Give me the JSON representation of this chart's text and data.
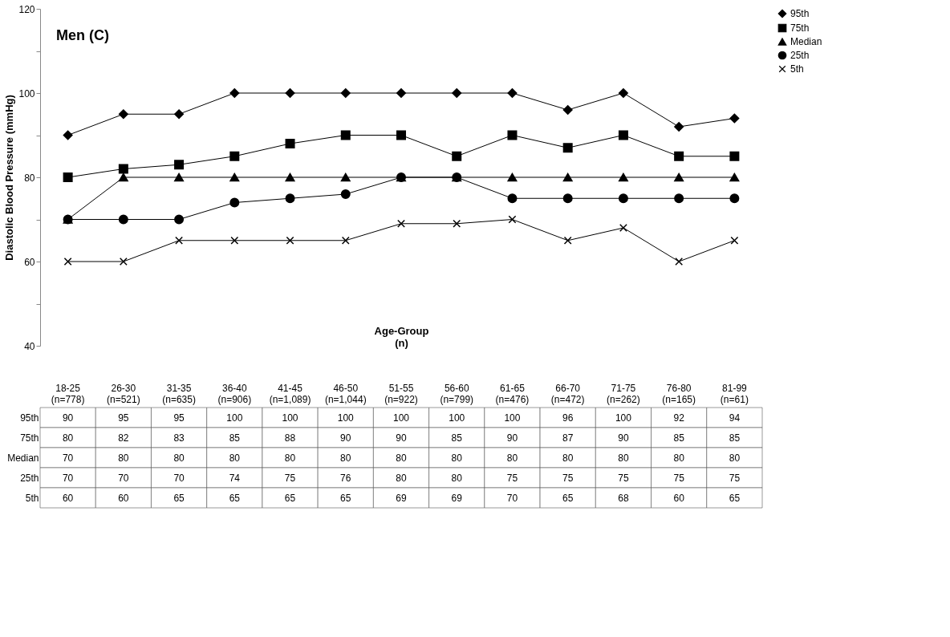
{
  "chart_data": {
    "type": "line",
    "title": "Men (C)",
    "xlabel": "Age-Group\n(n)",
    "ylabel": "Diastolic Blood Pressure (mmHg)",
    "categories": [
      "18-25 (n=778)",
      "26-30 (n=521)",
      "31-35 (n=635)",
      "36-40 (n=906)",
      "41-45 (n=1,089)",
      "46-50 (n=1,044)",
      "51-55 (n=922)",
      "56-60 (n=799)",
      "61-65 (n=476)",
      "66-70 (n=472)",
      "71-75 (n=262)",
      "76-80 (n=165)",
      "81-99 (n=61)"
    ],
    "series": [
      {
        "name": "95th",
        "color": "#000000",
        "marker": "diamond",
        "values": [
          90,
          95,
          95,
          100,
          100,
          100,
          100,
          100,
          100,
          96,
          100,
          92,
          94
        ]
      },
      {
        "name": "75th",
        "color": "#000000",
        "marker": "square",
        "values": [
          80,
          82,
          83,
          85,
          88,
          90,
          90,
          85,
          90,
          87,
          90,
          85,
          85
        ]
      },
      {
        "name": "Median",
        "color": "#000000",
        "marker": "triangle",
        "values": [
          70,
          80,
          80,
          80,
          80,
          80,
          80,
          80,
          80,
          80,
          80,
          80,
          80
        ]
      },
      {
        "name": "25th",
        "color": "#000000",
        "marker": "circle",
        "values": [
          70,
          70,
          70,
          74,
          75,
          76,
          80,
          80,
          75,
          75,
          75,
          75,
          75
        ]
      },
      {
        "name": "5th",
        "color": "#000000",
        "marker": "cross",
        "values": [
          60,
          60,
          65,
          65,
          65,
          65,
          69,
          69,
          70,
          65,
          68,
          60,
          65
        ]
      }
    ],
    "ylim": [
      40,
      120
    ],
    "yticks": [
      40,
      {
        "value": 50,
        "label": null
      },
      60,
      {
        "value": 70,
        "label": null
      },
      80,
      {
        "value": 90,
        "label": null
      },
      100,
      {
        "value": 110,
        "label": null
      },
      120
    ],
    "grid": false,
    "legend": "top right",
    "line_style": "solid",
    "data_labels": true
  }
}
